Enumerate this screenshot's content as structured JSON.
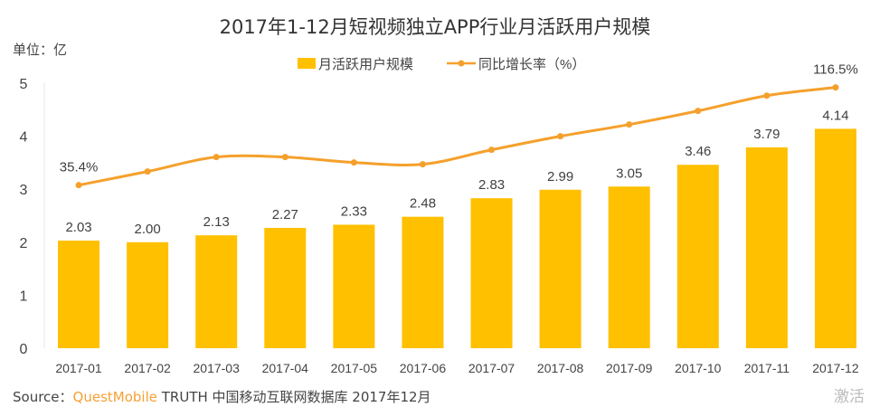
{
  "chart_data": {
    "type": "bar+line",
    "title": "2017年1-12月短视频独立APP行业月活跃用户规模",
    "unit_label": "单位：亿",
    "categories": [
      "2017-01",
      "2017-02",
      "2017-03",
      "2017-04",
      "2017-05",
      "2017-06",
      "2017-07",
      "2017-08",
      "2017-09",
      "2017-10",
      "2017-11",
      "2017-12"
    ],
    "series": [
      {
        "name": "月活跃用户规模",
        "type": "bar",
        "color": "#FFC000",
        "values": [
          2.03,
          2.0,
          2.13,
          2.27,
          2.33,
          2.48,
          2.83,
          2.99,
          3.05,
          3.46,
          3.79,
          4.14
        ],
        "labels": [
          "2.03",
          "2.00",
          "2.13",
          "2.27",
          "2.33",
          "2.48",
          "2.83",
          "2.99",
          "3.05",
          "3.46",
          "3.79",
          "4.14"
        ]
      },
      {
        "name": "同比增长率（%）",
        "type": "line",
        "color": "#F5A02C",
        "values": [
          35.4,
          46.7,
          58.7,
          58.7,
          54.2,
          52.7,
          64.7,
          76.0,
          85.7,
          97.0,
          109.7,
          116.5
        ],
        "labels": [
          "35.4%",
          "",
          "",
          "",
          "",
          "",
          "",
          "",
          "",
          "",
          "",
          "116.5%"
        ]
      }
    ],
    "ylim": [
      0,
      5
    ],
    "yticks": [
      "0",
      "1",
      "2",
      "3",
      "4",
      "5"
    ],
    "y2lim": [
      -100,
      120
    ],
    "legend": "top-center",
    "grid": false
  },
  "source": {
    "prefix": "Source：",
    "brand": "QuestMobile",
    "rest": " TRUTH 中国移动互联网数据库 2017年12月"
  },
  "watermark": "激活"
}
